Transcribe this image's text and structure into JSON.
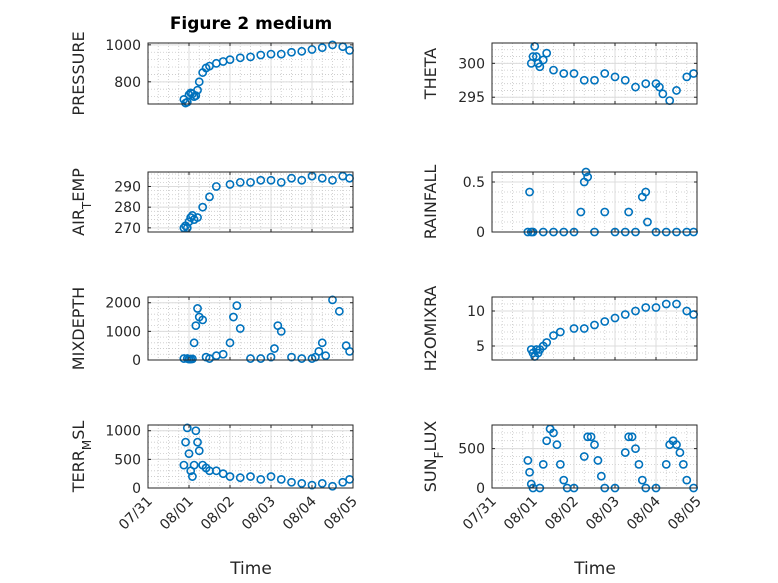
{
  "figure": {
    "title": "Figure 2 medium",
    "xlabel": "Time",
    "x_ticks": [
      "07/31",
      "08/01",
      "08/02",
      "08/03",
      "08/04",
      "08/05"
    ],
    "marker_color": "#0072BD"
  },
  "chart_data": [
    {
      "type": "scatter",
      "ylabel": "PRESSURE",
      "ylim": [
        680,
        1010
      ],
      "y_ticks": [
        800,
        1000
      ],
      "x": [
        "07/31 21:00",
        "07/31 22:00",
        "07/31 23:00",
        "08/01 00:00",
        "08/01 01:00",
        "08/01 02:00",
        "08/01 03:00",
        "08/01 04:00",
        "08/01 05:00",
        "08/01 06:00",
        "08/01 08:00",
        "08/01 10:00",
        "08/01 12:00",
        "08/01 16:00",
        "08/01 20:00",
        "08/02 00:00",
        "08/02 06:00",
        "08/02 12:00",
        "08/02 18:00",
        "08/03 00:00",
        "08/03 06:00",
        "08/03 12:00",
        "08/03 18:00",
        "08/04 00:00",
        "08/04 06:00",
        "08/04 12:00",
        "08/04 18:00",
        "08/04 22:00"
      ],
      "y": [
        705,
        685,
        690,
        730,
        740,
        735,
        720,
        725,
        755,
        800,
        850,
        875,
        885,
        900,
        910,
        920,
        930,
        935,
        945,
        950,
        950,
        960,
        965,
        975,
        985,
        1000,
        990,
        970
      ]
    },
    {
      "type": "scatter",
      "ylabel": "THETA",
      "ylim": [
        294,
        303
      ],
      "y_ticks": [
        295,
        300
      ],
      "x": [
        "07/31 23:00",
        "08/01 00:00",
        "08/01 01:00",
        "08/01 02:00",
        "08/01 03:00",
        "08/01 04:00",
        "08/01 06:00",
        "08/01 08:00",
        "08/01 12:00",
        "08/01 18:00",
        "08/02 00:00",
        "08/02 06:00",
        "08/02 12:00",
        "08/02 18:00",
        "08/03 00:00",
        "08/03 06:00",
        "08/03 12:00",
        "08/03 18:00",
        "08/04 00:00",
        "08/04 02:00",
        "08/04 04:00",
        "08/04 08:00",
        "08/04 12:00",
        "08/04 18:00",
        "08/04 22:00"
      ],
      "y": [
        300,
        301,
        302.5,
        301,
        300,
        299.5,
        300.5,
        301.5,
        299,
        298.5,
        298.5,
        297.5,
        297.5,
        298.5,
        298,
        297.5,
        296.5,
        297,
        297,
        296.5,
        295.5,
        294.5,
        296,
        298,
        298.5
      ]
    },
    {
      "type": "scatter",
      "ylabel": "AIR_TEMP",
      "ylim": [
        268,
        297
      ],
      "y_ticks": [
        270,
        280,
        290
      ],
      "x": [
        "07/31 21:00",
        "07/31 22:00",
        "07/31 23:00",
        "08/01 00:00",
        "08/01 01:00",
        "08/01 02:00",
        "08/01 03:00",
        "08/01 05:00",
        "08/01 08:00",
        "08/01 12:00",
        "08/01 16:00",
        "08/02 00:00",
        "08/02 06:00",
        "08/02 12:00",
        "08/02 18:00",
        "08/03 00:00",
        "08/03 06:00",
        "08/03 12:00",
        "08/03 18:00",
        "08/04 00:00",
        "08/04 06:00",
        "08/04 12:00",
        "08/04 18:00",
        "08/04 22:00"
      ],
      "y": [
        270,
        271,
        270,
        273,
        275,
        276,
        274,
        275,
        280,
        285,
        290,
        291,
        292,
        292,
        293,
        293,
        292,
        294,
        293,
        295,
        294,
        293,
        295,
        294
      ]
    },
    {
      "type": "scatter",
      "ylabel": "RAINFALL",
      "ylim": [
        0,
        0.6
      ],
      "y_ticks": [
        0,
        0.5
      ],
      "x": [
        "07/31 21:00",
        "07/31 22:00",
        "07/31 23:00",
        "08/01 00:00",
        "08/01 06:00",
        "08/01 12:00",
        "08/01 18:00",
        "08/02 00:00",
        "08/02 04:00",
        "08/02 06:00",
        "08/02 07:00",
        "08/02 08:00",
        "08/02 12:00",
        "08/02 18:00",
        "08/03 00:00",
        "08/03 06:00",
        "08/03 08:00",
        "08/03 12:00",
        "08/03 16:00",
        "08/03 18:00",
        "08/03 19:00",
        "08/04 00:00",
        "08/04 06:00",
        "08/04 12:00",
        "08/04 18:00",
        "08/04 22:00"
      ],
      "y": [
        0,
        0.4,
        0,
        0,
        0,
        0,
        0,
        0,
        0.2,
        0.5,
        0.6,
        0.55,
        0,
        0.2,
        0,
        0,
        0.2,
        0,
        0.35,
        0.4,
        0.1,
        0,
        0,
        0,
        0,
        0
      ]
    },
    {
      "type": "scatter",
      "ylabel": "MIXDEPTH",
      "ylim": [
        0,
        2200
      ],
      "y_ticks": [
        0,
        1000,
        2000
      ],
      "x": [
        "07/31 21:00",
        "07/31 23:00",
        "08/01 00:00",
        "08/01 01:00",
        "08/01 02:00",
        "08/01 03:00",
        "08/01 04:00",
        "08/01 05:00",
        "08/01 06:00",
        "08/01 08:00",
        "08/01 10:00",
        "08/01 12:00",
        "08/01 16:00",
        "08/01 20:00",
        "08/02 00:00",
        "08/02 02:00",
        "08/02 04:00",
        "08/02 06:00",
        "08/02 12:00",
        "08/02 18:00",
        "08/03 00:00",
        "08/03 02:00",
        "08/03 04:00",
        "08/03 06:00",
        "08/03 12:00",
        "08/03 18:00",
        "08/04 00:00",
        "08/04 02:00",
        "08/04 04:00",
        "08/04 06:00",
        "08/04 08:00",
        "08/04 12:00",
        "08/04 16:00",
        "08/04 20:00",
        "08/04 22:00"
      ],
      "y": [
        50,
        50,
        30,
        30,
        40,
        600,
        1200,
        1800,
        1500,
        1400,
        100,
        50,
        150,
        200,
        600,
        1500,
        1900,
        1100,
        50,
        50,
        100,
        400,
        1200,
        1000,
        100,
        50,
        50,
        100,
        300,
        600,
        150,
        2100,
        1700,
        500,
        300
      ]
    },
    {
      "type": "scatter",
      "ylabel": "H2OMIXRA",
      "ylim": [
        3,
        12
      ],
      "y_ticks": [
        5,
        10
      ],
      "x": [
        "07/31 23:00",
        "08/01 00:00",
        "08/01 01:00",
        "08/01 02:00",
        "08/01 03:00",
        "08/01 04:00",
        "08/01 06:00",
        "08/01 08:00",
        "08/01 12:00",
        "08/01 16:00",
        "08/02 00:00",
        "08/02 06:00",
        "08/02 12:00",
        "08/02 18:00",
        "08/03 00:00",
        "08/03 06:00",
        "08/03 12:00",
        "08/03 18:00",
        "08/04 00:00",
        "08/04 06:00",
        "08/04 12:00",
        "08/04 18:00",
        "08/04 22:00"
      ],
      "y": [
        4.5,
        4,
        3.5,
        4.5,
        4,
        4.5,
        5,
        5.5,
        6.5,
        7,
        7.5,
        7.5,
        8,
        8.5,
        9,
        9.5,
        10,
        10.5,
        10.5,
        11,
        11,
        10,
        9.5
      ]
    },
    {
      "type": "scatter",
      "ylabel": "TERR_MSL",
      "ylim": [
        0,
        1100
      ],
      "y_ticks": [
        0,
        500,
        1000
      ],
      "x": [
        "07/31 21:00",
        "07/31 22:00",
        "07/31 23:00",
        "08/01 00:00",
        "08/01 01:00",
        "08/01 02:00",
        "08/01 03:00",
        "08/01 04:00",
        "08/01 05:00",
        "08/01 06:00",
        "08/01 08:00",
        "08/01 10:00",
        "08/01 12:00",
        "08/01 16:00",
        "08/01 20:00",
        "08/02 00:00",
        "08/02 06:00",
        "08/02 12:00",
        "08/02 18:00",
        "08/03 00:00",
        "08/03 06:00",
        "08/03 12:00",
        "08/03 18:00",
        "08/04 00:00",
        "08/04 06:00",
        "08/04 12:00",
        "08/04 18:00",
        "08/04 22:00"
      ],
      "y": [
        400,
        800,
        1050,
        600,
        300,
        200,
        400,
        1000,
        800,
        650,
        400,
        350,
        300,
        300,
        250,
        200,
        180,
        200,
        150,
        200,
        150,
        100,
        80,
        50,
        80,
        30,
        100,
        150
      ]
    },
    {
      "type": "scatter",
      "ylabel": "SUN_FLUX",
      "ylim": [
        0,
        800
      ],
      "y_ticks": [
        0,
        500
      ],
      "x": [
        "07/31 21:00",
        "07/31 22:00",
        "07/31 23:00",
        "08/01 00:00",
        "08/01 04:00",
        "08/01 06:00",
        "08/01 08:00",
        "08/01 10:00",
        "08/01 12:00",
        "08/01 14:00",
        "08/01 16:00",
        "08/01 18:00",
        "08/01 20:00",
        "08/02 00:00",
        "08/02 06:00",
        "08/02 08:00",
        "08/02 10:00",
        "08/02 12:00",
        "08/02 14:00",
        "08/02 16:00",
        "08/02 18:00",
        "08/03 00:00",
        "08/03 06:00",
        "08/03 08:00",
        "08/03 10:00",
        "08/03 12:00",
        "08/03 14:00",
        "08/03 16:00",
        "08/03 18:00",
        "08/04 00:00",
        "08/04 06:00",
        "08/04 08:00",
        "08/04 10:00",
        "08/04 12:00",
        "08/04 14:00",
        "08/04 16:00",
        "08/04 18:00",
        "08/04 22:00"
      ],
      "y": [
        350,
        200,
        50,
        0,
        0,
        300,
        600,
        750,
        700,
        550,
        300,
        100,
        0,
        0,
        400,
        650,
        650,
        550,
        350,
        150,
        0,
        0,
        450,
        650,
        650,
        500,
        300,
        100,
        0,
        0,
        300,
        550,
        600,
        550,
        450,
        300,
        100,
        0
      ]
    }
  ]
}
